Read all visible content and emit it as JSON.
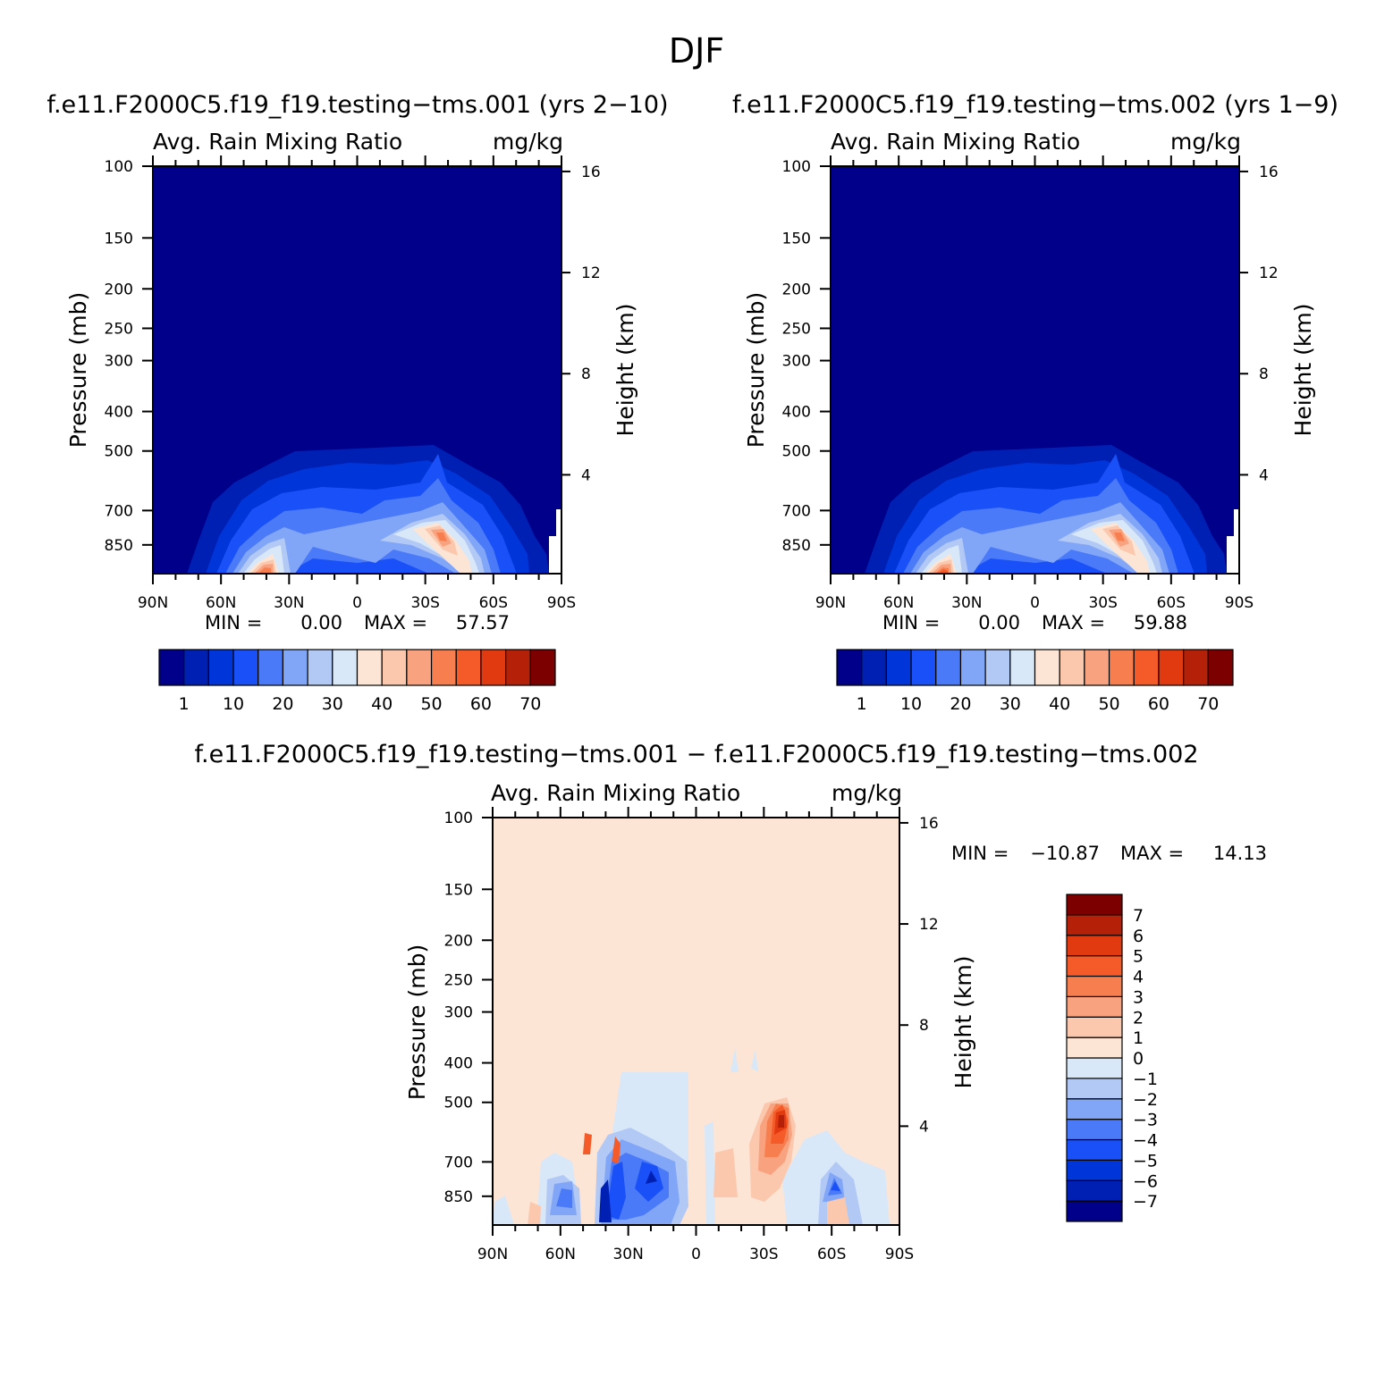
{
  "figure": {
    "title": "DJF"
  },
  "chart_data": [
    {
      "type": "heatmap",
      "title": "f.e11.F2000C5.f19_f19.testing−tms.001 (yrs 2−10)",
      "left_subtitle": "Avg. Rain Mixing Ratio",
      "right_subtitle": "mg/kg",
      "xlabel": "",
      "ylabel": "Pressure (mb)",
      "y2label": "Height (km)",
      "x_ticks": [
        "90N",
        "60N",
        "30N",
        "0",
        "30S",
        "60S",
        "90S"
      ],
      "y_ticks": [
        100,
        150,
        200,
        250,
        300,
        400,
        500,
        700,
        850
      ],
      "y2_ticks": [
        16,
        12,
        8,
        4
      ],
      "y_scale": "log",
      "ylim": [
        100,
        1000
      ],
      "min_label": "MIN =",
      "min_value": "0.00",
      "max_label": "MAX =",
      "max_value": "57.57",
      "colorbar": {
        "orientation": "horizontal",
        "colors": [
          "#00008b",
          "#0020b3",
          "#0035d9",
          "#1a50f7",
          "#4a7af7",
          "#82a6f7",
          "#b2c8f5",
          "#d8e8f8",
          "#fde5d6",
          "#fcc8ad",
          "#f8a27f",
          "#f77f4f",
          "#f55b28",
          "#e23a10",
          "#b52008",
          "#7d0000"
        ],
        "labels": [
          "1",
          "10",
          "20",
          "30",
          "40",
          "50",
          "60",
          "70"
        ]
      }
    },
    {
      "type": "heatmap",
      "title": "f.e11.F2000C5.f19_f19.testing−tms.002 (yrs 1−9)",
      "left_subtitle": "Avg. Rain Mixing Ratio",
      "right_subtitle": "mg/kg",
      "xlabel": "",
      "ylabel": "Pressure (mb)",
      "y2label": "Height (km)",
      "x_ticks": [
        "90N",
        "60N",
        "30N",
        "0",
        "30S",
        "60S",
        "90S"
      ],
      "y_ticks": [
        100,
        150,
        200,
        250,
        300,
        400,
        500,
        700,
        850
      ],
      "y2_ticks": [
        16,
        12,
        8,
        4
      ],
      "y_scale": "log",
      "ylim": [
        100,
        1000
      ],
      "min_label": "MIN =",
      "min_value": "0.00",
      "max_label": "MAX =",
      "max_value": "59.88",
      "colorbar": {
        "orientation": "horizontal",
        "colors": [
          "#00008b",
          "#0020b3",
          "#0035d9",
          "#1a50f7",
          "#4a7af7",
          "#82a6f7",
          "#b2c8f5",
          "#d8e8f8",
          "#fde5d6",
          "#fcc8ad",
          "#f8a27f",
          "#f77f4f",
          "#f55b28",
          "#e23a10",
          "#b52008",
          "#7d0000"
        ],
        "labels": [
          "1",
          "10",
          "20",
          "30",
          "40",
          "50",
          "60",
          "70"
        ]
      }
    },
    {
      "type": "heatmap",
      "title": "f.e11.F2000C5.f19_f19.testing−tms.001 − f.e11.F2000C5.f19_f19.testing−tms.002",
      "left_subtitle": "Avg. Rain Mixing Ratio",
      "right_subtitle": "mg/kg",
      "xlabel": "",
      "ylabel": "Pressure (mb)",
      "y2label": "Height (km)",
      "x_ticks": [
        "90N",
        "60N",
        "30N",
        "0",
        "30S",
        "60S",
        "90S"
      ],
      "y_ticks": [
        100,
        150,
        200,
        250,
        300,
        400,
        500,
        700,
        850
      ],
      "y2_ticks": [
        16,
        12,
        8,
        4
      ],
      "y_scale": "log",
      "ylim": [
        100,
        1000
      ],
      "min_label": "MIN =",
      "min_value": "−10.87",
      "max_label": "MAX =",
      "max_value": "14.13",
      "colorbar": {
        "orientation": "vertical",
        "colors": [
          "#00008b",
          "#0020b3",
          "#0035d9",
          "#1a50f7",
          "#4a7af7",
          "#82a6f7",
          "#b2c8f5",
          "#d8e8f8",
          "#fde5d6",
          "#fcc8ad",
          "#f8a27f",
          "#f77f4f",
          "#f55b28",
          "#e23a10",
          "#b52008",
          "#7d0000"
        ],
        "labels": [
          "7",
          "6",
          "5",
          "4",
          "3",
          "2",
          "1",
          "0",
          "−1",
          "−2",
          "−3",
          "−4",
          "−5",
          "−6",
          "−7"
        ]
      }
    }
  ]
}
